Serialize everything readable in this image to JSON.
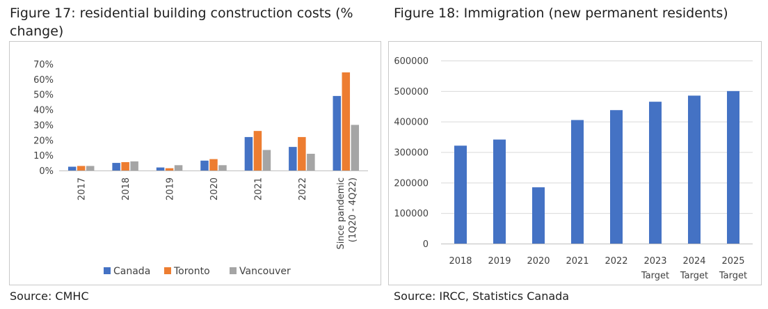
{
  "chart_data": [
    {
      "type": "bar",
      "title": "Figure 17: residential building construction costs (% change)",
      "source": "Source: CMHC",
      "categories": [
        "2017",
        "2018",
        "2019",
        "2020",
        "2021",
        "2022",
        "Since pandemic (1Q20 - 4Q22)"
      ],
      "category_lines": [
        [
          "2017"
        ],
        [
          "2018"
        ],
        [
          "2019"
        ],
        [
          "2020"
        ],
        [
          "2021"
        ],
        [
          "2022"
        ],
        [
          "Since pandemic",
          "(1Q20 - 4Q22)"
        ]
      ],
      "series": [
        {
          "name": "Canada",
          "values": [
            2.5,
            5,
            2,
            6.5,
            22,
            15.5,
            49
          ]
        },
        {
          "name": "Toronto",
          "values": [
            3,
            5.5,
            1.5,
            7.5,
            26,
            22,
            64.5
          ]
        },
        {
          "name": "Vancouver",
          "values": [
            3,
            6,
            3.5,
            3.5,
            13.5,
            11,
            30
          ]
        }
      ],
      "ylim": [
        0,
        70
      ],
      "yticks": [
        0,
        10,
        20,
        30,
        40,
        50,
        60,
        70
      ],
      "ytick_labels": [
        "0%",
        "10%",
        "20%",
        "30%",
        "40%",
        "50%",
        "60%",
        "70%"
      ],
      "xlabel": "",
      "ylabel": "",
      "legend_position": "bottom",
      "grid": false
    },
    {
      "type": "bar",
      "title": "Figure 18: Immigration (new permanent residents)",
      "source": "Source: IRCC, Statistics Canada",
      "categories": [
        "2018",
        "2019",
        "2020",
        "2021",
        "2022",
        "2023 Target",
        "2024 Target",
        "2025 Target"
      ],
      "category_lines": [
        [
          "2018"
        ],
        [
          "2019"
        ],
        [
          "2020"
        ],
        [
          "2021"
        ],
        [
          "2022"
        ],
        [
          "2023",
          "Target"
        ],
        [
          "2024",
          "Target"
        ],
        [
          "2025",
          "Target"
        ]
      ],
      "series": [
        {
          "name": "New permanent residents",
          "values": [
            321000,
            341000,
            184500,
            405000,
            437500,
            465000,
            485000,
            500000
          ]
        }
      ],
      "ylim": [
        0,
        600000
      ],
      "yticks": [
        0,
        100000,
        200000,
        300000,
        400000,
        500000,
        600000
      ],
      "ytick_labels": [
        "0",
        "100000",
        "200000",
        "300000",
        "400000",
        "500000",
        "600000"
      ],
      "xlabel": "",
      "ylabel": "",
      "grid": true
    }
  ],
  "colors": {
    "canada": "#4472c4",
    "toronto": "#ed7d31",
    "vancouver": "#a5a5a5",
    "immigration": "#4472c4",
    "gridline": "#d9d9d9",
    "axis": "#bfbfbf"
  }
}
